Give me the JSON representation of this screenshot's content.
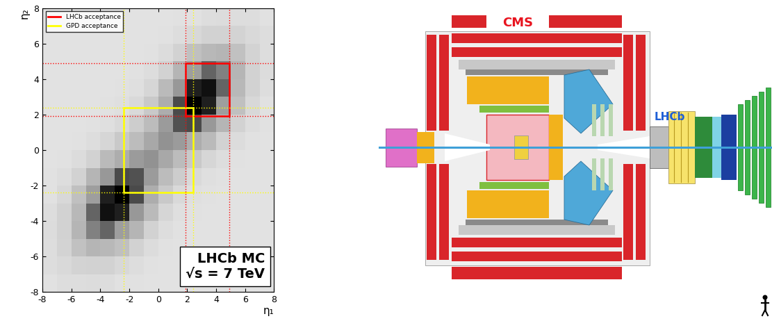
{
  "chart_data": {
    "type": "heatmap",
    "x_label": "η₁",
    "y_label": "η₂",
    "xlim": [
      -8,
      8
    ],
    "ylim": [
      -8,
      8
    ],
    "xticks": [
      -8,
      -6,
      -4,
      -2,
      0,
      2,
      4,
      6,
      8
    ],
    "yticks": [
      -8,
      -6,
      -4,
      -2,
      0,
      2,
      4,
      6,
      8
    ],
    "cells": [
      [
        1,
        3,
        3,
        4,
        3,
        1,
        1,
        0,
        0,
        0,
        0,
        0,
        0,
        0,
        0,
        0
      ],
      [
        3,
        6,
        10,
        11,
        11,
        7,
        3,
        1,
        0,
        0,
        0,
        0,
        0,
        0,
        0,
        0
      ],
      [
        3,
        10,
        22,
        30,
        28,
        23,
        11,
        4,
        1,
        0,
        0,
        0,
        0,
        0,
        0,
        0
      ],
      [
        4,
        11,
        30,
        55,
        64,
        45,
        30,
        11,
        3,
        1,
        0,
        0,
        0,
        0,
        0,
        0
      ],
      [
        3,
        11,
        28,
        64,
        90,
        85,
        48,
        26,
        8,
        2,
        1,
        0,
        0,
        0,
        0,
        0
      ],
      [
        1,
        7,
        23,
        45,
        85,
        95,
        72,
        35,
        17,
        6,
        2,
        1,
        0,
        0,
        0,
        0
      ],
      [
        1,
        3,
        11,
        30,
        48,
        72,
        70,
        47,
        25,
        14,
        6,
        2,
        1,
        0,
        0,
        0
      ],
      [
        0,
        1,
        4,
        11,
        26,
        35,
        47,
        50,
        38,
        25,
        17,
        8,
        3,
        1,
        0,
        0
      ],
      [
        0,
        0,
        1,
        3,
        8,
        17,
        25,
        38,
        50,
        47,
        35,
        26,
        11,
        4,
        1,
        0
      ],
      [
        0,
        0,
        0,
        1,
        2,
        6,
        14,
        25,
        47,
        70,
        72,
        48,
        30,
        11,
        3,
        1
      ],
      [
        0,
        0,
        0,
        0,
        1,
        2,
        6,
        17,
        35,
        72,
        95,
        85,
        45,
        23,
        7,
        1
      ],
      [
        0,
        0,
        0,
        0,
        0,
        1,
        2,
        8,
        26,
        48,
        85,
        90,
        64,
        28,
        11,
        3
      ],
      [
        0,
        0,
        0,
        0,
        0,
        0,
        1,
        3,
        11,
        30,
        45,
        64,
        55,
        30,
        11,
        4
      ],
      [
        0,
        0,
        0,
        0,
        0,
        0,
        0,
        1,
        4,
        11,
        23,
        28,
        30,
        22,
        10,
        3
      ],
      [
        0,
        0,
        0,
        0,
        0,
        0,
        0,
        0,
        1,
        3,
        7,
        11,
        11,
        10,
        6,
        3
      ],
      [
        0,
        0,
        0,
        0,
        0,
        0,
        0,
        0,
        0,
        1,
        1,
        3,
        4,
        3,
        3,
        1
      ]
    ],
    "regions": [
      {
        "name": "LHCb acceptance",
        "color": "#ff0000",
        "range": [
          1.9,
          4.9
        ]
      },
      {
        "name": "GPD acceptance",
        "color": "#ffff00",
        "range": [
          -2.4,
          2.4
        ]
      }
    ],
    "legend": "upper left",
    "annotations": [
      "LHCb MC",
      "√s = 7 TeV"
    ],
    "grid": false
  },
  "diagram": {
    "labels": [
      {
        "text": "CMS",
        "color": "#e8141f"
      },
      {
        "text": "LHCb",
        "color": "#1f5fd6"
      }
    ]
  }
}
